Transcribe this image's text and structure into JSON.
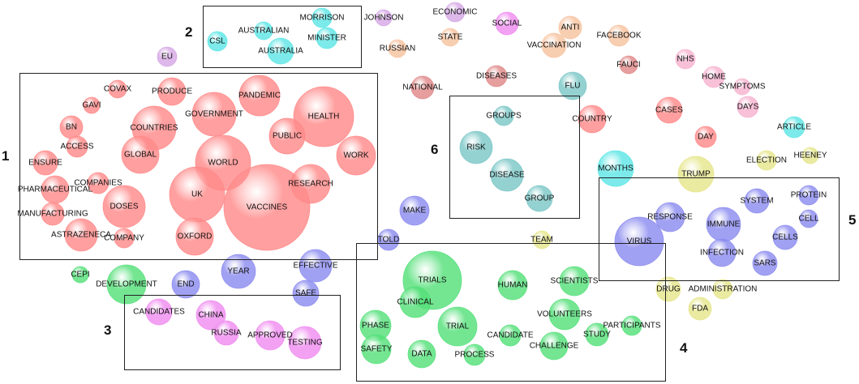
{
  "colors": {
    "red": "#ff8a8a",
    "cyan": "#5fe6e6",
    "teal": "#7cc7c7",
    "green": "#55e07a",
    "blue": "#8c8cf0",
    "magenta": "#f08cf0",
    "yellow": "#e6e68c",
    "peach": "#f7c3a0",
    "lavender": "#d6a8e6",
    "darkred": "#e08888",
    "pink": "#f7b3cf"
  },
  "clusters": [
    {
      "label": "1"
    },
    {
      "label": "2"
    },
    {
      "label": "3"
    },
    {
      "label": "4"
    },
    {
      "label": "5"
    },
    {
      "label": "6"
    }
  ],
  "bubbles": [
    {
      "word": "COVAX",
      "color": "red"
    },
    {
      "word": "PRODUCE",
      "color": "red"
    },
    {
      "word": "PANDEMIC",
      "color": "red"
    },
    {
      "word": "GAVI",
      "color": "red"
    },
    {
      "word": "GOVERNMENT",
      "color": "red"
    },
    {
      "word": "HEALTH",
      "color": "red"
    },
    {
      "word": "BN",
      "color": "red"
    },
    {
      "word": "COUNTRIES",
      "color": "red"
    },
    {
      "word": "PUBLIC",
      "color": "red"
    },
    {
      "word": "ACCESS",
      "color": "red"
    },
    {
      "word": "GLOBAL",
      "color": "red"
    },
    {
      "word": "WORK",
      "color": "red"
    },
    {
      "word": "ENSURE",
      "color": "red"
    },
    {
      "word": "WORLD",
      "color": "red"
    },
    {
      "word": "COMPANIES",
      "color": "red"
    },
    {
      "word": "RESEARCH",
      "color": "red"
    },
    {
      "word": "PHARMACEUTICAL",
      "color": "red"
    },
    {
      "word": "UK",
      "color": "red"
    },
    {
      "word": "DOSES",
      "color": "red"
    },
    {
      "word": "VACCINES",
      "color": "red"
    },
    {
      "word": "MANUFACTURING",
      "color": "red"
    },
    {
      "word": "ASTRAZENECA",
      "color": "red"
    },
    {
      "word": "COMPANY",
      "color": "red"
    },
    {
      "word": "OXFORD",
      "color": "red"
    },
    {
      "word": "EU",
      "color": "lavender"
    },
    {
      "word": "CSL",
      "color": "cyan"
    },
    {
      "word": "AUSTRALIAN",
      "color": "cyan"
    },
    {
      "word": "MORRISON",
      "color": "cyan"
    },
    {
      "word": "MINISTER",
      "color": "cyan"
    },
    {
      "word": "AUSTRALIA",
      "color": "cyan"
    },
    {
      "word": "JOHNSON",
      "color": "lavender"
    },
    {
      "word": "RUSSIAN",
      "color": "peach"
    },
    {
      "word": "ECONOMIC",
      "color": "lavender"
    },
    {
      "word": "STATE",
      "color": "peach"
    },
    {
      "word": "SOCIAL",
      "color": "magenta"
    },
    {
      "word": "ANTI",
      "color": "peach"
    },
    {
      "word": "VACCINATION",
      "color": "peach"
    },
    {
      "word": "FACEBOOK",
      "color": "peach"
    },
    {
      "word": "FAUCI",
      "color": "darkred"
    },
    {
      "word": "NHS",
      "color": "pink"
    },
    {
      "word": "HOME",
      "color": "pink"
    },
    {
      "word": "SYMPTOMS",
      "color": "pink"
    },
    {
      "word": "DAYS",
      "color": "pink"
    },
    {
      "word": "NATIONAL",
      "color": "darkred"
    },
    {
      "word": "DISEASES",
      "color": "darkred"
    },
    {
      "word": "FLU",
      "color": "teal"
    },
    {
      "word": "COUNTRY",
      "color": "red"
    },
    {
      "word": "CASES",
      "color": "red"
    },
    {
      "word": "DAY",
      "color": "red"
    },
    {
      "word": "ARTICLE",
      "color": "cyan"
    },
    {
      "word": "ELECTION",
      "color": "yellow"
    },
    {
      "word": "HEENEY",
      "color": "yellow"
    },
    {
      "word": "GROUPS",
      "color": "teal"
    },
    {
      "word": "RISK",
      "color": "teal"
    },
    {
      "word": "DISEASE",
      "color": "teal"
    },
    {
      "word": "GROUP",
      "color": "teal"
    },
    {
      "word": "MONTHS",
      "color": "cyan"
    },
    {
      "word": "TRUMP",
      "color": "yellow"
    },
    {
      "word": "MAKE",
      "color": "blue"
    },
    {
      "word": "TOLD",
      "color": "blue"
    },
    {
      "word": "TEAM",
      "color": "yellow"
    },
    {
      "word": "RESPONSE",
      "color": "blue"
    },
    {
      "word": "SYSTEM",
      "color": "blue"
    },
    {
      "word": "PROTEIN",
      "color": "blue"
    },
    {
      "word": "IMMUNE",
      "color": "blue"
    },
    {
      "word": "CELL",
      "color": "blue"
    },
    {
      "word": "VIRUS",
      "color": "blue"
    },
    {
      "word": "CELLS",
      "color": "blue"
    },
    {
      "word": "INFECTION",
      "color": "blue"
    },
    {
      "word": "SARS",
      "color": "blue"
    },
    {
      "word": "CEPI",
      "color": "green"
    },
    {
      "word": "DEVELOPMENT",
      "color": "green"
    },
    {
      "word": "END",
      "color": "blue"
    },
    {
      "word": "YEAR",
      "color": "blue"
    },
    {
      "word": "EFFECTIVE",
      "color": "blue"
    },
    {
      "word": "SAFE",
      "color": "blue"
    },
    {
      "word": "CANDIDATES",
      "color": "magenta"
    },
    {
      "word": "CHINA",
      "color": "magenta"
    },
    {
      "word": "RUSSIA",
      "color": "magenta"
    },
    {
      "word": "APPROVED",
      "color": "magenta"
    },
    {
      "word": "TESTING",
      "color": "magenta"
    },
    {
      "word": "TRIALS",
      "color": "green"
    },
    {
      "word": "CLINICAL",
      "color": "green"
    },
    {
      "word": "HUMAN",
      "color": "green"
    },
    {
      "word": "SCIENTISTS",
      "color": "green"
    },
    {
      "word": "VOLUNTEERS",
      "color": "green"
    },
    {
      "word": "PHASE",
      "color": "green"
    },
    {
      "word": "TRIAL",
      "color": "green"
    },
    {
      "word": "PARTICIPANTS",
      "color": "green"
    },
    {
      "word": "STUDY",
      "color": "green"
    },
    {
      "word": "CANDIDATE",
      "color": "green"
    },
    {
      "word": "CHALLENGE",
      "color": "green"
    },
    {
      "word": "SAFETY",
      "color": "green"
    },
    {
      "word": "DATA",
      "color": "green"
    },
    {
      "word": "PROCESS",
      "color": "green"
    },
    {
      "word": "DRUG",
      "color": "yellow"
    },
    {
      "word": "ADMINISTRATION",
      "color": "yellow"
    },
    {
      "word": "FDA",
      "color": "yellow"
    }
  ]
}
